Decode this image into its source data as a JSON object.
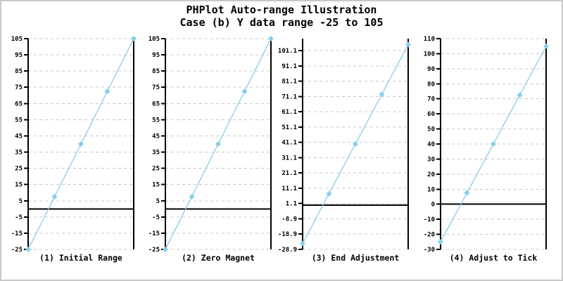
{
  "header": {
    "title": "PHPlot Auto-range Illustration",
    "subtitle": "Case (b) Y data range -25 to 105"
  },
  "colors": {
    "data_line": "#87CEEB",
    "marker": "#87CEEB",
    "grid": "#C8C8C8",
    "axis": "#000000",
    "zero_line": "#000000",
    "text": "#000000",
    "background": "#FFFFFF",
    "image_border": "#C9C9C9"
  },
  "chart_data": [
    {
      "type": "line",
      "title": "(1) Initial Range",
      "x": [
        0,
        1,
        2,
        3,
        4
      ],
      "y_values": [
        -25,
        7.5,
        40,
        72.5,
        105
      ],
      "ylim": [
        -25,
        105
      ],
      "yticks": [
        -25,
        -15,
        -5,
        5,
        15,
        25,
        35,
        45,
        55,
        65,
        75,
        85,
        95,
        105
      ],
      "ytick_labels": [
        "-25",
        "-15",
        "-5",
        "5",
        "15",
        "25",
        "35",
        "45",
        "55",
        "65",
        "75",
        "85",
        "95",
        "105"
      ],
      "zero_line": 0,
      "marker": "diamond",
      "grid": "dashed-horizontal",
      "x_tick_labels": []
    },
    {
      "type": "line",
      "title": "(2) Zero Magnet",
      "x": [
        0,
        1,
        2,
        3,
        4
      ],
      "y_values": [
        -25,
        7.5,
        40,
        72.5,
        105
      ],
      "ylim": [
        -25,
        105
      ],
      "yticks": [
        -25,
        -15,
        -5,
        5,
        15,
        25,
        35,
        45,
        55,
        65,
        75,
        85,
        95,
        105
      ],
      "ytick_labels": [
        "-25",
        "-15",
        "-5",
        "5",
        "15",
        "25",
        "35",
        "45",
        "55",
        "65",
        "75",
        "85",
        "95",
        "105"
      ],
      "zero_line": 0,
      "marker": "diamond",
      "grid": "dashed-horizontal",
      "x_tick_labels": []
    },
    {
      "type": "line",
      "title": "(3) End Adjustment",
      "x": [
        0,
        1,
        2,
        3,
        4
      ],
      "y_values": [
        -25,
        7.5,
        40,
        72.5,
        105
      ],
      "ylim": [
        -28.9,
        108.9
      ],
      "yticks": [
        -28.9,
        -18.9,
        -8.9,
        1.1,
        11.1,
        21.1,
        31.1,
        41.1,
        51.1,
        61.1,
        71.1,
        81.1,
        91.1,
        101.1
      ],
      "ytick_labels": [
        "-28.9",
        "-18.9",
        "-8.9",
        "1.1",
        "11.1",
        "21.1",
        "31.1",
        "41.1",
        "51.1",
        "61.1",
        "71.1",
        "81.1",
        "91.1",
        "101.1"
      ],
      "zero_line": 0,
      "marker": "diamond",
      "grid": "dashed-horizontal",
      "x_tick_labels": []
    },
    {
      "type": "line",
      "title": "(4) Adjust to Tick",
      "x": [
        0,
        1,
        2,
        3,
        4
      ],
      "y_values": [
        -25,
        7.5,
        40,
        72.5,
        105
      ],
      "ylim": [
        -30,
        110
      ],
      "yticks": [
        -30,
        -20,
        -10,
        0,
        10,
        20,
        30,
        40,
        50,
        60,
        70,
        80,
        90,
        100,
        110
      ],
      "ytick_labels": [
        "-30",
        "-20",
        "-10",
        "0",
        "10",
        "20",
        "30",
        "40",
        "50",
        "60",
        "70",
        "80",
        "90",
        "100",
        "110"
      ],
      "zero_line": 0,
      "marker": "diamond",
      "grid": "dashed-horizontal",
      "x_tick_labels": []
    }
  ]
}
